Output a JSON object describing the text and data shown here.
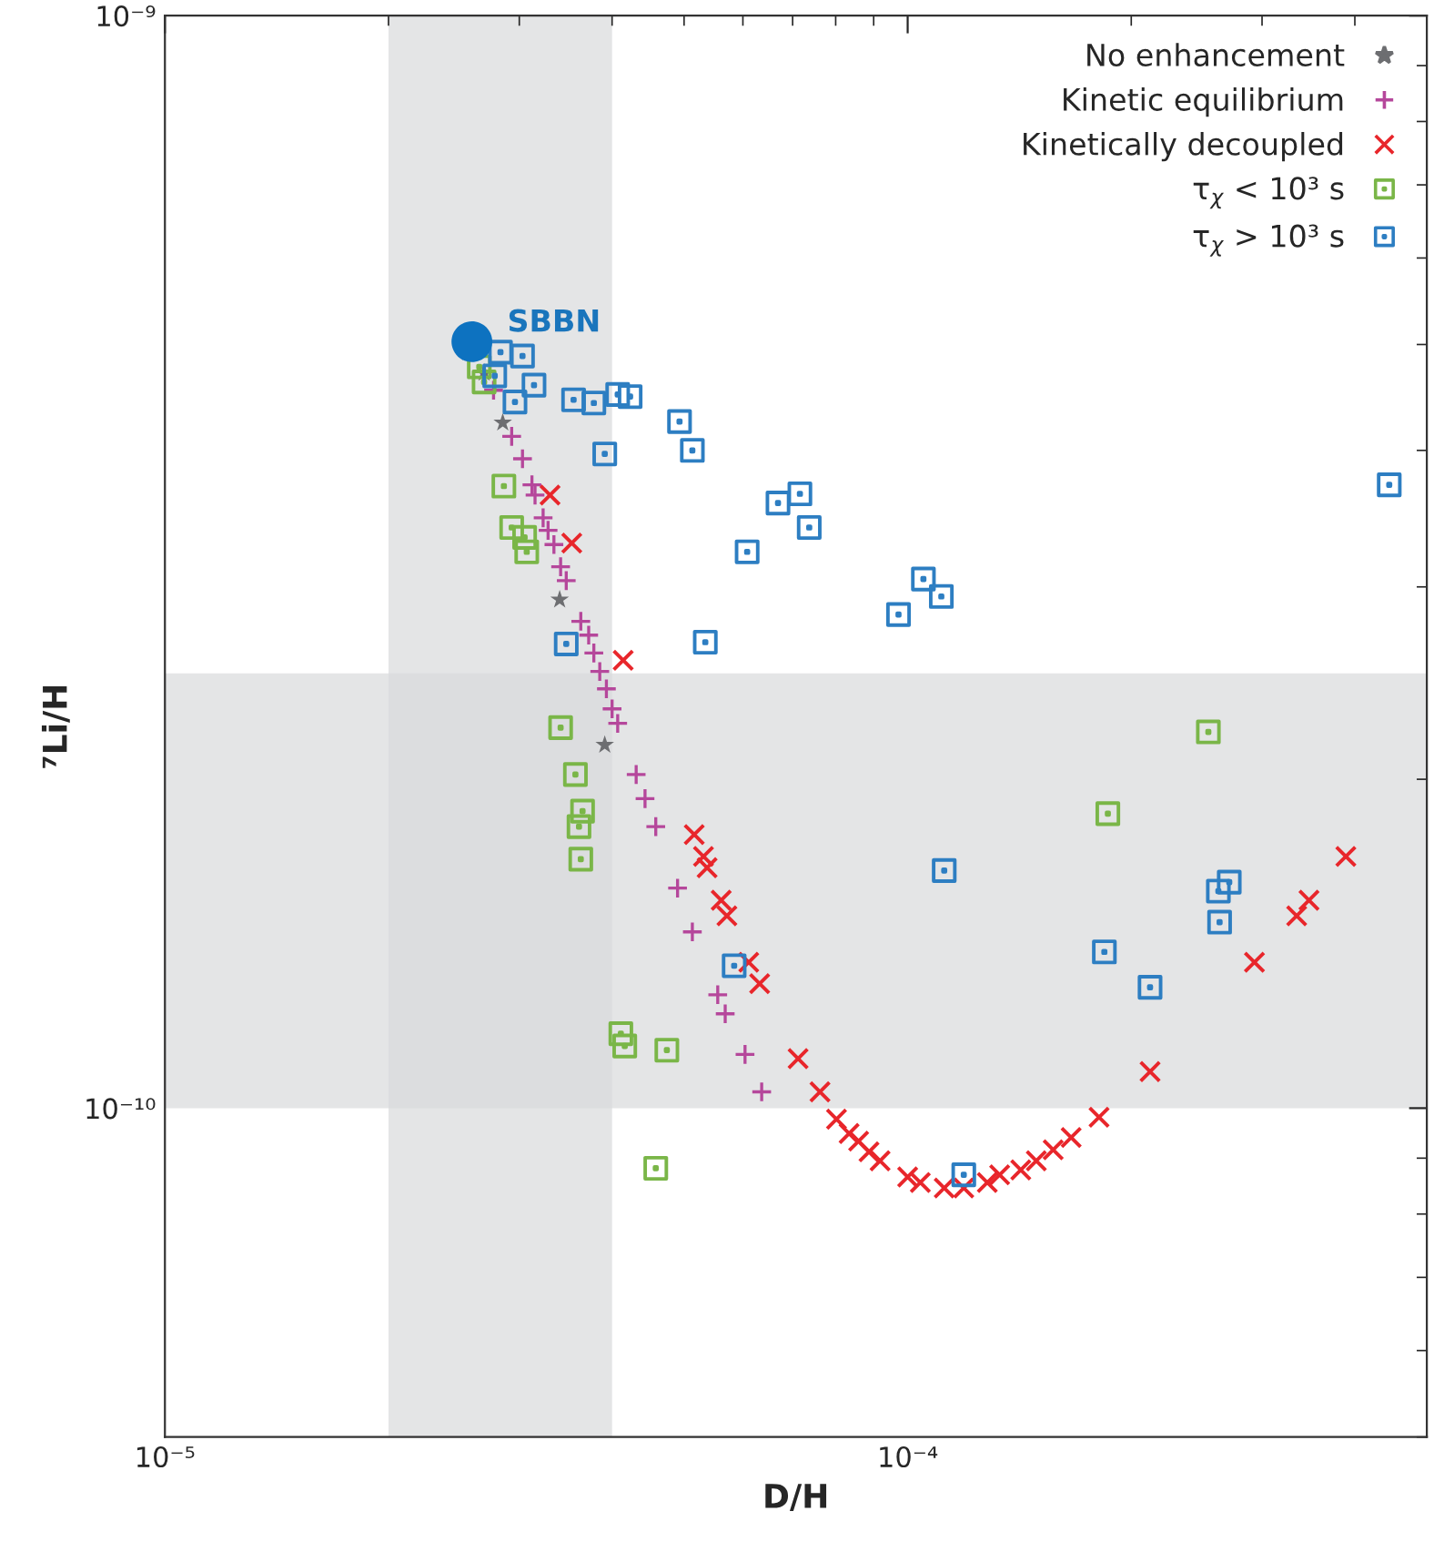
{
  "chart_data": {
    "type": "scatter",
    "xlabel": "D/H",
    "ylabel": "⁷Li/H",
    "log": "xy",
    "xlim": [
      1e-05,
      0.0005
    ],
    "ylim": [
      5e-11,
      1e-09
    ],
    "xticks": [
      {
        "value": 1e-05,
        "label": "10⁻⁵"
      },
      {
        "value": 0.0001,
        "label": "10⁻⁴"
      }
    ],
    "yticks": [
      {
        "value": 1e-10,
        "label": "10⁻¹⁰"
      },
      {
        "value": 1e-09,
        "label": "10⁻⁹"
      }
    ],
    "grid": false,
    "legend": "top right",
    "bands": [
      {
        "axis": "x",
        "from": 2e-05,
        "to": 4e-05,
        "color": "#d9dadc"
      },
      {
        "axis": "y",
        "from": 1e-10,
        "to": 2.5e-10,
        "color": "#d9dadc"
      }
    ],
    "annotations": [
      {
        "text": "SBBN",
        "x": 2.59e-05,
        "y": 5.03e-10
      }
    ],
    "series": [
      {
        "name": "No enhancement",
        "color": "#6d6e71",
        "marker": "star",
        "x": [
          2.69e-05,
          2.85e-05,
          3.4e-05,
          3.91e-05
        ],
        "values": [
          4.71e-10,
          4.24e-10,
          2.92e-10,
          2.15e-10
        ]
      },
      {
        "name": "Kinetic equilibrium",
        "color": "#b5479b",
        "marker": "plus",
        "x": [
          2.77e-05,
          2.93e-05,
          3.03e-05,
          3.12e-05,
          3.15e-05,
          3.23e-05,
          3.28e-05,
          3.34e-05,
          3.41e-05,
          3.47e-05,
          3.63e-05,
          3.72e-05,
          3.78e-05,
          3.85e-05,
          3.93e-05,
          4e-05,
          4.07e-05,
          4.31e-05,
          4.43e-05,
          4.58e-05,
          4.9e-05,
          5.13e-05,
          5.55e-05,
          5.68e-05,
          6.04e-05,
          6.36e-05
        ],
        "values": [
          4.54e-10,
          4.12e-10,
          3.93e-10,
          3.72e-10,
          3.64e-10,
          3.47e-10,
          3.38e-10,
          3.28e-10,
          3.13e-10,
          3.04e-10,
          2.79e-10,
          2.71e-10,
          2.61e-10,
          2.51e-10,
          2.42e-10,
          2.32e-10,
          2.25e-10,
          2.02e-10,
          1.92e-10,
          1.81e-10,
          1.59e-10,
          1.45e-10,
          1.27e-10,
          1.22e-10,
          1.12e-10,
          1.035e-10
        ]
      },
      {
        "name": "Kinetically decoupled",
        "color": "#e8262b",
        "marker": "cross",
        "x": [
          3.3e-05,
          3.53e-05,
          4.14e-05,
          5.16e-05,
          5.31e-05,
          5.37e-05,
          5.61e-05,
          5.71e-05,
          6.11e-05,
          6.32e-05,
          7.12e-05,
          7.62e-05,
          8.02e-05,
          8.34e-05,
          8.59e-05,
          8.87e-05,
          9.18e-05,
          0.0001,
          0.000104,
          0.000112,
          0.000119,
          0.000128,
          0.000133,
          0.000142,
          0.000149,
          0.000157,
          0.000166,
          0.000181,
          0.000212,
          0.000293,
          0.000334,
          0.000347,
          0.000389
        ],
        "values": [
          3.64e-10,
          3.29e-10,
          2.57e-10,
          1.78e-10,
          1.7e-10,
          1.66e-10,
          1.55e-10,
          1.5e-10,
          1.36e-10,
          1.3e-10,
          1.11e-10,
          1.035e-10,
          9.77e-11,
          9.48e-11,
          9.33e-11,
          9.12e-11,
          8.95e-11,
          8.65e-11,
          8.55e-11,
          8.45e-11,
          8.45e-11,
          8.55e-11,
          8.69e-11,
          8.78e-11,
          8.95e-11,
          9.16e-11,
          9.4e-11,
          9.81e-11,
          1.08e-10,
          1.36e-10,
          1.5e-10,
          1.55e-10,
          1.7e-10
        ]
      },
      {
        "name": "τ$_{χ}$ < 10³ s",
        "color": "#7ab648",
        "marker": "square",
        "x": [
          2.65e-05,
          2.69e-05,
          2.86e-05,
          2.93e-05,
          3.05e-05,
          3.07e-05,
          3.41e-05,
          3.57e-05,
          3.65e-05,
          3.61e-05,
          3.63e-05,
          4.11e-05,
          4.16e-05,
          4.74e-05,
          4.58e-05,
          0.000186,
          0.000254
        ],
        "values": [
          4.77e-10,
          4.62e-10,
          3.71e-10,
          3.4e-10,
          3.33e-10,
          3.23e-10,
          2.23e-10,
          2.02e-10,
          1.87e-10,
          1.81e-10,
          1.69e-10,
          1.17e-10,
          1.14e-10,
          1.13e-10,
          8.81e-11,
          1.86e-10,
          2.21e-10
        ]
      },
      {
        "name": "τ$_{χ}$ > 10³ s",
        "color": "#2d7ec2",
        "marker": "square",
        "x": [
          2.83e-05,
          3.03e-05,
          2.78e-05,
          3.14e-05,
          2.96e-05,
          3.55e-05,
          3.78e-05,
          4.07e-05,
          4.23e-05,
          4.93e-05,
          5.13e-05,
          3.91e-05,
          6.69e-05,
          7.16e-05,
          7.37e-05,
          6.08e-05,
          3.47e-05,
          5.34e-05,
          0.000445,
          9.72e-05,
          0.000105,
          0.000111,
          0.000112,
          5.84e-05,
          0.000184,
          0.000212,
          0.000262,
          0.000271,
          0.000263,
          0.000119
        ],
        "values": [
          4.92e-10,
          4.88e-10,
          4.68e-10,
          4.59e-10,
          4.43e-10,
          4.45e-10,
          4.42e-10,
          4.5e-10,
          4.48e-10,
          4.25e-10,
          4e-10,
          3.97e-10,
          3.58e-10,
          3.65e-10,
          3.4e-10,
          3.23e-10,
          2.66e-10,
          2.67e-10,
          3.72e-10,
          2.83e-10,
          3.05e-10,
          2.94e-10,
          1.65e-10,
          1.35e-10,
          1.39e-10,
          1.29e-10,
          1.58e-10,
          1.61e-10,
          1.48e-10,
          8.69e-11
        ]
      },
      {
        "color": "#0d72c0",
        "marker": "circle",
        "x": [
          2.59e-05
        ],
        "values": [
          5.03e-10
        ]
      }
    ]
  }
}
